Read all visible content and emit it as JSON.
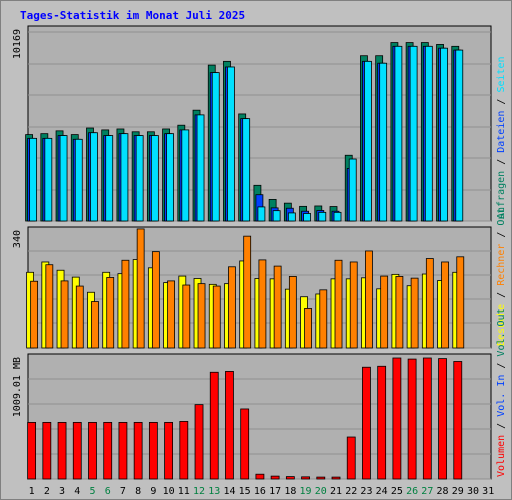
{
  "title": "Tages-Statistik im Monat Juli 2025",
  "colors": {
    "background": "#c0c0c0",
    "plot_bg": "#b0b0b0",
    "grid": "#909090",
    "anfragen": "#008060",
    "dateien": "#0040ff",
    "seiten": "#00e0ff",
    "besuche": "#ffff00",
    "rechner": "#ff8000",
    "volumen": "#ff0000",
    "title": "#0000ff",
    "weekend_day": "#008040",
    "weekday": "#000000"
  },
  "chart_data": [
    {
      "type": "bar",
      "name": "hits-panel",
      "y_max_label": "10169",
      "ylim": [
        0,
        10169
      ],
      "categories": [
        "1",
        "2",
        "3",
        "4",
        "5",
        "6",
        "7",
        "8",
        "9",
        "10",
        "11",
        "12",
        "13",
        "14",
        "15",
        "16",
        "17",
        "18",
        "19",
        "20",
        "21",
        "22",
        "23",
        "24",
        "25",
        "26",
        "27",
        "28",
        "29",
        "30",
        "31"
      ],
      "weekend_days": [
        "5",
        "6",
        "12",
        "13",
        "19",
        "20",
        "26",
        "27"
      ],
      "right_labels": [
        {
          "text": "Anfragen",
          "color": "#008060"
        },
        {
          "text": "Dateien",
          "color": "#0040ff"
        },
        {
          "text": "Seiten",
          "color": "#00e0ff"
        }
      ],
      "series": [
        {
          "name": "Anfragen",
          "color": "#008060",
          "values": [
            4600,
            4650,
            4800,
            4600,
            4950,
            4850,
            4900,
            4750,
            4750,
            4900,
            5100,
            5900,
            8300,
            8500,
            5700,
            1900,
            1150,
            950,
            780,
            800,
            770,
            3500,
            8800,
            8800,
            9500,
            9500,
            9500,
            9400,
            9300,
            0,
            0
          ]
        },
        {
          "name": "Dateien",
          "color": "#0040ff",
          "values": [
            4400,
            4400,
            4550,
            4350,
            4700,
            4550,
            4650,
            4550,
            4550,
            4650,
            4850,
            5650,
            7900,
            8200,
            5450,
            1400,
            700,
            680,
            520,
            560,
            520,
            2800,
            8500,
            8400,
            9300,
            9300,
            9300,
            9200,
            9100,
            0,
            0
          ]
        },
        {
          "name": "Seiten",
          "color": "#00e0ff",
          "values": [
            4400,
            4400,
            4550,
            4350,
            4700,
            4550,
            4650,
            4550,
            4550,
            4650,
            4850,
            5650,
            7900,
            8200,
            5450,
            750,
            550,
            430,
            400,
            460,
            460,
            3300,
            8500,
            8400,
            9300,
            9300,
            9300,
            9200,
            9100,
            0,
            0
          ]
        }
      ]
    },
    {
      "type": "bar",
      "name": "visits-panel",
      "y_max_label": "340",
      "ylim": [
        0,
        340
      ],
      "right_labels": [
        {
          "text": "Besuche",
          "color": "#ffff00"
        },
        {
          "text": "Rechner",
          "color": "#ff8000"
        },
        {
          "text": "Out",
          "color": "#008060"
        }
      ],
      "series": [
        {
          "name": "Besuche",
          "color": "#ffff00",
          "values": [
            220,
            250,
            226,
            206,
            162,
            220,
            216,
            257,
            233,
            190,
            209,
            202,
            185,
            187,
            253,
            202,
            201,
            171,
            149,
            157,
            201,
            201,
            204,
            172,
            214,
            181,
            215,
            196,
            220,
            0,
            0
          ]
        },
        {
          "name": "Rechner",
          "color": "#ff8000",
          "values": [
            194,
            242,
            195,
            180,
            135,
            205,
            255,
            346,
            280,
            195,
            183,
            187,
            180,
            236,
            325,
            256,
            238,
            208,
            115,
            169,
            255,
            250,
            282,
            209,
            208,
            203,
            260,
            250,
            265,
            0,
            0
          ]
        }
      ]
    },
    {
      "type": "bar",
      "name": "volume-panel",
      "y_max_label": "1009.01 MB",
      "ylim": [
        0,
        1009.01
      ],
      "right_labels": [
        {
          "text": "Volumen",
          "color": "#ff0000"
        },
        {
          "text": "Vol. In",
          "color": "#0040ff"
        },
        {
          "text": "Vol. Out",
          "color": "#008060"
        }
      ],
      "series": [
        {
          "name": "Volumen",
          "color": "#ff0000",
          "values": [
            472,
            472,
            472,
            472,
            472,
            472,
            472,
            472,
            472,
            472,
            480,
            620,
            890,
            897,
            584,
            40,
            24,
            20,
            18,
            16,
            16,
            350,
            932,
            940,
            1009,
            1000,
            1009,
            1004,
            980,
            0,
            0
          ]
        }
      ]
    }
  ]
}
